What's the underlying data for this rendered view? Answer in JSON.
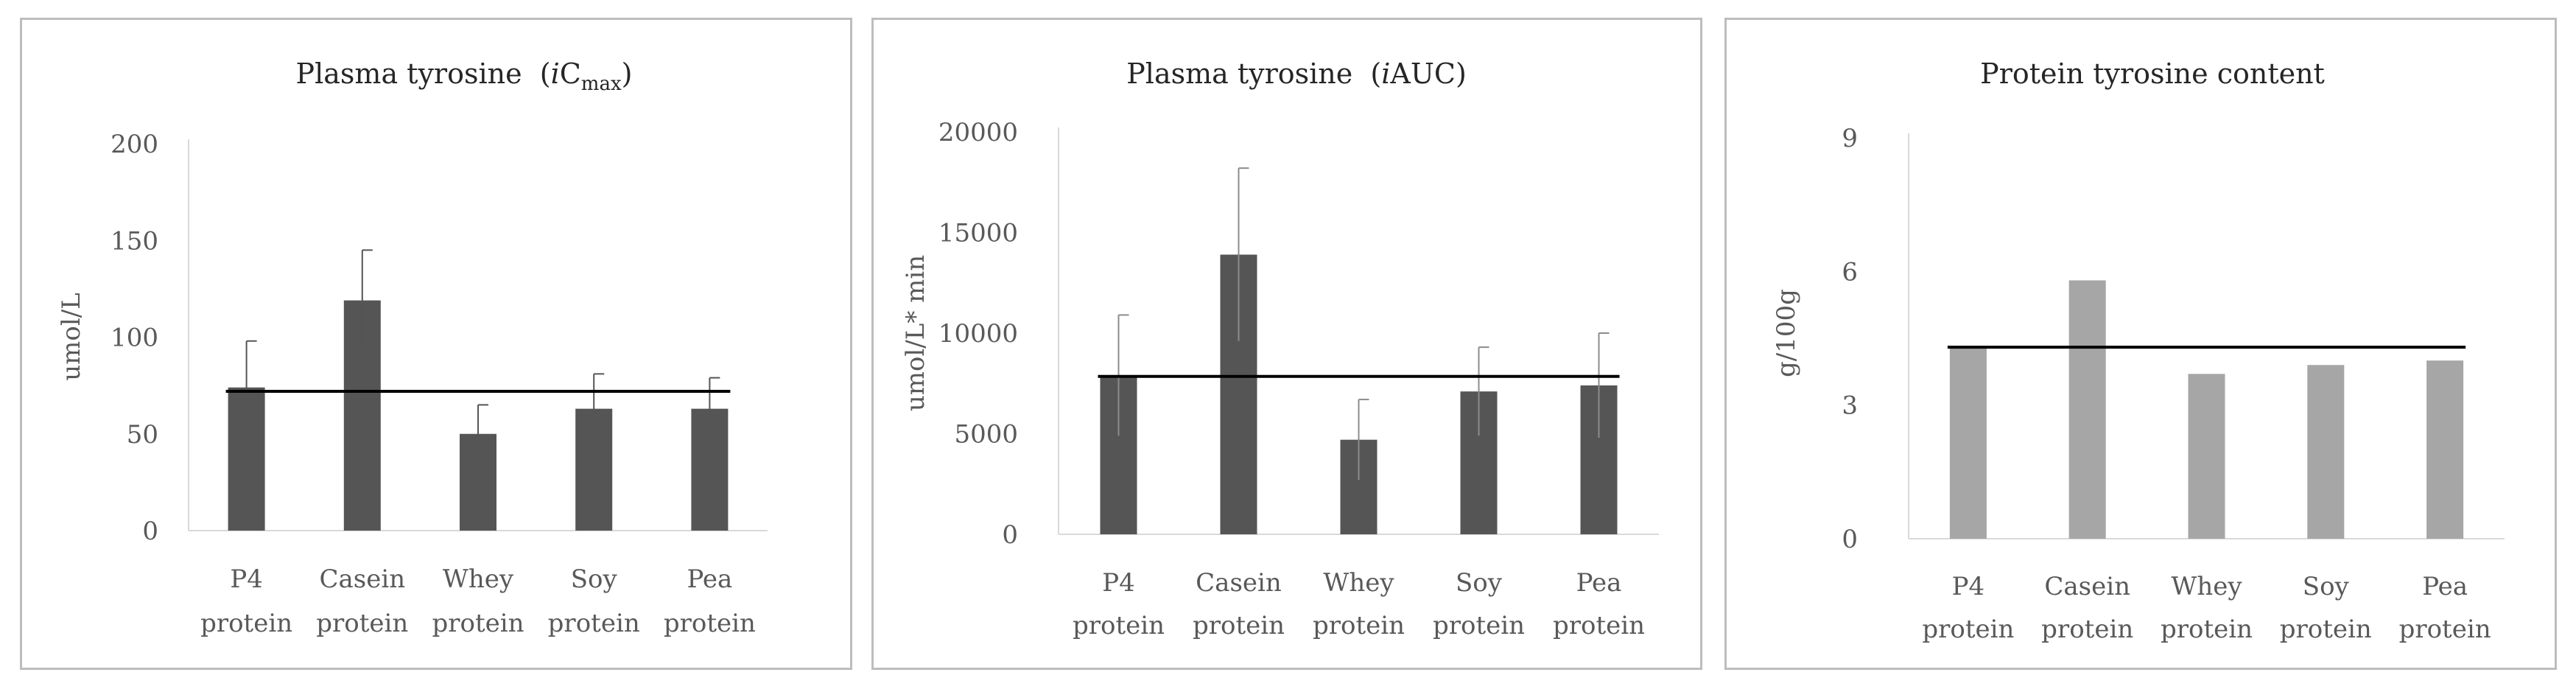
{
  "chart_data": [
    {
      "type": "bar",
      "title": "Plasma tyrosine",
      "title_parts": {
        "open": "(",
        "italic": "i",
        "main": "C",
        "sub": "max",
        "close": ")"
      },
      "xlabel": "",
      "ylabel": "umol/L",
      "ylim": [
        0,
        200
      ],
      "yticks": [
        "0",
        "50",
        "100",
        "150",
        "200"
      ],
      "categories": [
        [
          "P4",
          "protein"
        ],
        [
          "Casein",
          "protein"
        ],
        [
          "Whey",
          "protein"
        ],
        [
          "Soy",
          "protein"
        ],
        [
          "Pea",
          "protein"
        ]
      ],
      "values": [
        74,
        119,
        50,
        63,
        63
      ],
      "errors": [
        24,
        26,
        15,
        18,
        16
      ],
      "reference_line": 72,
      "bar_color": "#555555",
      "line_color": "#000000"
    },
    {
      "type": "bar",
      "title": "Plasma tyrosine",
      "title_parts": {
        "open": "(",
        "italic": "i",
        "main": "AUC",
        "sub": "",
        "close": ")"
      },
      "xlabel": "",
      "ylabel": "umol/L* min",
      "ylim": [
        0,
        20000
      ],
      "yticks": [
        "0",
        "5000",
        "10000",
        "15000",
        "20000"
      ],
      "categories": [
        [
          "P4",
          "protein"
        ],
        [
          "Casein",
          "protein"
        ],
        [
          "Whey",
          "protein"
        ],
        [
          "Soy",
          "protein"
        ],
        [
          "Pea",
          "protein"
        ]
      ],
      "values": [
        7900,
        13900,
        4700,
        7100,
        7400
      ],
      "errors": [
        3000,
        4300,
        2000,
        2200,
        2600
      ],
      "reference_line": 7850,
      "bar_color": "#555555",
      "line_color": "#000000"
    },
    {
      "type": "bar",
      "title": "Protein tyrosine content",
      "title_parts": null,
      "xlabel": "",
      "ylabel": "g/100g",
      "ylim": [
        0,
        9
      ],
      "yticks": [
        "0",
        "3",
        "6",
        "9"
      ],
      "categories": [
        [
          "P4",
          "protein"
        ],
        [
          "Casein",
          "protein"
        ],
        [
          "Whey",
          "protein"
        ],
        [
          "Soy",
          "protein"
        ],
        [
          "Pea",
          "protein"
        ]
      ],
      "values": [
        4.3,
        5.8,
        3.7,
        3.9,
        4.0
      ],
      "errors": null,
      "reference_line": 4.3,
      "bar_color": "#a6a6a6",
      "line_color": "#000000"
    }
  ]
}
